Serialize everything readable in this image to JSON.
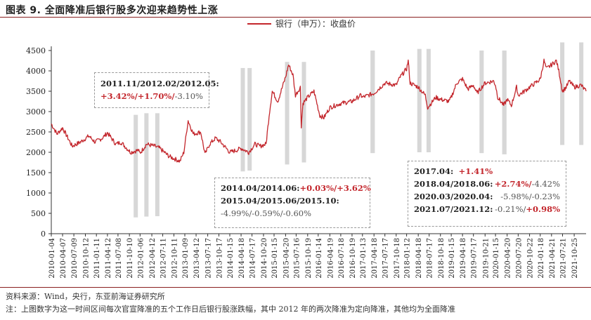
{
  "title": "图表 9.   全面降准后银行股多次迎来趋势性上涨",
  "chart_data": {
    "type": "line",
    "title": "图表 9.   全面降准后银行股多次迎来趋势性上涨",
    "series": [
      {
        "name": "银行（申万）：收盘价",
        "color": "#c3262c"
      }
    ],
    "ylim": [
      0,
      4500
    ],
    "yticks": [
      "0",
      "500",
      "1000",
      "1500",
      "2000",
      "2500",
      "3000",
      "3500",
      "4000",
      "4500"
    ],
    "xlim": [
      "2010-01-04",
      "2022-01-31"
    ],
    "xticks": [
      "2010-01-04",
      "2010-04-07",
      "2010-07-09",
      "2010-10-12",
      "2011-01-11",
      "2011-04-12",
      "2011-07-08",
      "2011-10-10",
      "2012-01-06",
      "2012-04-12",
      "2012-07-11",
      "2012-10-11",
      "2013-01-09",
      "2013-04-12",
      "2013-07-17",
      "2013-10-17",
      "2014-01-15",
      "2014-04-18",
      "2014-07-17",
      "2014-10-20",
      "2015-01-15",
      "2015-04-20",
      "2015-07-16",
      "2015-10-19",
      "2016-01-14",
      "2016-04-19",
      "2016-07-18",
      "2016-10-19",
      "2017-01-13",
      "2017-04-18",
      "2017-07-17",
      "2017-10-18",
      "2018-01-12",
      "2018-04-18",
      "2018-07-17",
      "2018-10-18",
      "2019-01-15",
      "2019-04-18",
      "2019-07-17",
      "2019-10-21",
      "2020-01-15",
      "2020-04-20",
      "2020-07-20",
      "2020-10-22",
      "2021-01-18",
      "2021-04-21",
      "2021-07-21",
      "2021-10-25"
    ],
    "anchors": [
      [
        "2010-01-04",
        2700
      ],
      [
        "2010-02-20",
        2450
      ],
      [
        "2010-04-07",
        2600
      ],
      [
        "2010-06-25",
        2150
      ],
      [
        "2010-09-01",
        2250
      ],
      [
        "2010-11-10",
        2400
      ],
      [
        "2010-12-31",
        2250
      ],
      [
        "2011-03-01",
        2350
      ],
      [
        "2011-04-12",
        2480
      ],
      [
        "2011-06-20",
        2200
      ],
      [
        "2011-08-01",
        2250
      ],
      [
        "2011-10-20",
        2000
      ],
      [
        "2011-12-20",
        2050
      ],
      [
        "2012-01-06",
        1980
      ],
      [
        "2012-02-28",
        2200
      ],
      [
        "2012-05-05",
        2150
      ],
      [
        "2012-06-15",
        2100
      ],
      [
        "2012-09-01",
        1900
      ],
      [
        "2012-11-30",
        1780
      ],
      [
        "2013-01-01",
        2000
      ],
      [
        "2013-02-05",
        2780
      ],
      [
        "2013-03-20",
        2450
      ],
      [
        "2013-05-20",
        2500
      ],
      [
        "2013-06-25",
        1950
      ],
      [
        "2013-08-01",
        2200
      ],
      [
        "2013-09-20",
        2350
      ],
      [
        "2013-11-01",
        2250
      ],
      [
        "2014-01-15",
        2000
      ],
      [
        "2014-03-10",
        2050
      ],
      [
        "2014-04-18",
        2100
      ],
      [
        "2014-06-20",
        2000
      ],
      [
        "2014-08-10",
        2200
      ],
      [
        "2014-09-20",
        2150
      ],
      [
        "2014-11-10",
        2200
      ],
      [
        "2014-12-05",
        2900
      ],
      [
        "2014-12-31",
        3500
      ],
      [
        "2015-02-15",
        3250
      ],
      [
        "2015-04-20",
        3850
      ],
      [
        "2015-05-15",
        4150
      ],
      [
        "2015-06-20",
        3900
      ],
      [
        "2015-07-10",
        3400
      ],
      [
        "2015-08-20",
        3600
      ],
      [
        "2015-08-27",
        2650
      ],
      [
        "2015-09-10",
        3200
      ],
      [
        "2015-10-19",
        3350
      ],
      [
        "2015-12-10",
        3500
      ],
      [
        "2016-01-28",
        2900
      ],
      [
        "2016-03-01",
        2850
      ],
      [
        "2016-04-19",
        3100
      ],
      [
        "2016-07-18",
        3200
      ],
      [
        "2016-10-19",
        3250
      ],
      [
        "2016-12-31",
        3400
      ],
      [
        "2017-01-13",
        3350
      ],
      [
        "2017-04-18",
        3450
      ],
      [
        "2017-07-17",
        3700
      ],
      [
        "2017-10-18",
        3650
      ],
      [
        "2017-11-20",
        3850
      ],
      [
        "2018-01-12",
        4050
      ],
      [
        "2018-01-25",
        4250
      ],
      [
        "2018-02-10",
        3700
      ],
      [
        "2018-04-18",
        3600
      ],
      [
        "2018-06-15",
        3400
      ],
      [
        "2018-07-05",
        3100
      ],
      [
        "2018-09-10",
        3350
      ],
      [
        "2018-10-18",
        3300
      ],
      [
        "2018-12-28",
        3250
      ],
      [
        "2019-01-15",
        3350
      ],
      [
        "2019-03-01",
        3700
      ],
      [
        "2019-04-18",
        3800
      ],
      [
        "2019-06-01",
        3550
      ],
      [
        "2019-07-17",
        3650
      ],
      [
        "2019-08-15",
        3450
      ],
      [
        "2019-10-21",
        3700
      ],
      [
        "2019-12-31",
        3750
      ],
      [
        "2020-01-15",
        3650
      ],
      [
        "2020-02-03",
        3350
      ],
      [
        "2020-03-23",
        3150
      ],
      [
        "2020-04-20",
        3300
      ],
      [
        "2020-05-25",
        3150
      ],
      [
        "2020-07-07",
        3600
      ],
      [
        "2020-07-20",
        3400
      ],
      [
        "2020-09-10",
        3500
      ],
      [
        "2020-10-22",
        3600
      ],
      [
        "2020-12-31",
        3750
      ],
      [
        "2021-01-18",
        3800
      ],
      [
        "2021-02-18",
        4250
      ],
      [
        "2021-03-10",
        4050
      ],
      [
        "2021-04-21",
        4150
      ],
      [
        "2021-05-31",
        4250
      ],
      [
        "2021-06-20",
        4000
      ],
      [
        "2021-07-21",
        3500
      ],
      [
        "2021-08-20",
        3600
      ],
      [
        "2021-09-15",
        3750
      ],
      [
        "2021-10-25",
        3600
      ],
      [
        "2021-12-20",
        3650
      ],
      [
        "2022-01-31",
        3500
      ]
    ],
    "event_bands": [
      {
        "start": "2011-11-14",
        "end": "2011-12-09",
        "low": 400,
        "high": 2920
      },
      {
        "start": "2012-02-10",
        "end": "2012-03-07",
        "low": 420,
        "high": 2960
      },
      {
        "start": "2012-05-10",
        "end": "2012-06-06",
        "low": 430,
        "high": 2960
      },
      {
        "start": "2014-04-15",
        "end": "2014-05-12",
        "low": 1530,
        "high": 4070
      },
      {
        "start": "2014-06-10",
        "end": "2014-07-07",
        "low": 1550,
        "high": 4070
      },
      {
        "start": "2015-04-15",
        "end": "2015-05-18",
        "low": 1700,
        "high": 4220
      },
      {
        "start": "2015-09-01",
        "end": "2015-10-01",
        "low": 1750,
        "high": 4220
      },
      {
        "start": "2017-03-20",
        "end": "2017-04-25",
        "low": 1980,
        "high": 4500
      },
      {
        "start": "2018-04-10",
        "end": "2018-05-10",
        "low": 2000,
        "high": 4540
      },
      {
        "start": "2018-06-25",
        "end": "2018-07-25",
        "low": 2000,
        "high": 4540
      },
      {
        "start": "2019-09-05",
        "end": "2019-10-10",
        "low": 1980,
        "high": 4500
      },
      {
        "start": "2020-03-10",
        "end": "2020-04-15",
        "low": 1950,
        "high": 4500
      },
      {
        "start": "2021-07-01",
        "end": "2021-08-05",
        "low": 2180,
        "high": 4700
      },
      {
        "start": "2021-12-05",
        "end": "2022-01-05",
        "low": 2180,
        "high": 4700
      }
    ]
  },
  "legend_label": "银行（申万）：收盘价",
  "annotations": {
    "box1": {
      "header": "2011.11/2012.02/2012.05:",
      "red": "+3.42%/+1.70%/",
      "grey": "-3.10%"
    },
    "box2": {
      "r1_label": "2014.04/2014.06:",
      "r1_red": "+0.03%/+3.62%",
      "r2_label": "2015.04/2015.06/2015.10:",
      "r3_grey": "-4.99%/-0.59%/-0.60%"
    },
    "box3": {
      "r1_label": "2017.04:",
      "r1_red": "+1.41%",
      "r2_label": "2018.04/2018.06:",
      "r2_red": "+2.74%/",
      "r2_grey": "-4.42%",
      "r3_label": "2020.03/2020.04:",
      "r3_grey": "-5.98%/-0.23%",
      "r4_label": "2021.07/2021.12:",
      "r4_grey": "-0.21%/",
      "r4_red": "+0.98%"
    }
  },
  "footnotes": {
    "source": "资料来源：Wind，央行，东亚前海证券研究所",
    "note": "注：上图数字为这一时间区间每次官宣降准的五个工作日后银行股涨跌幅，其中 2012 年的两次降准为定向降准，其他均为全面降准"
  }
}
